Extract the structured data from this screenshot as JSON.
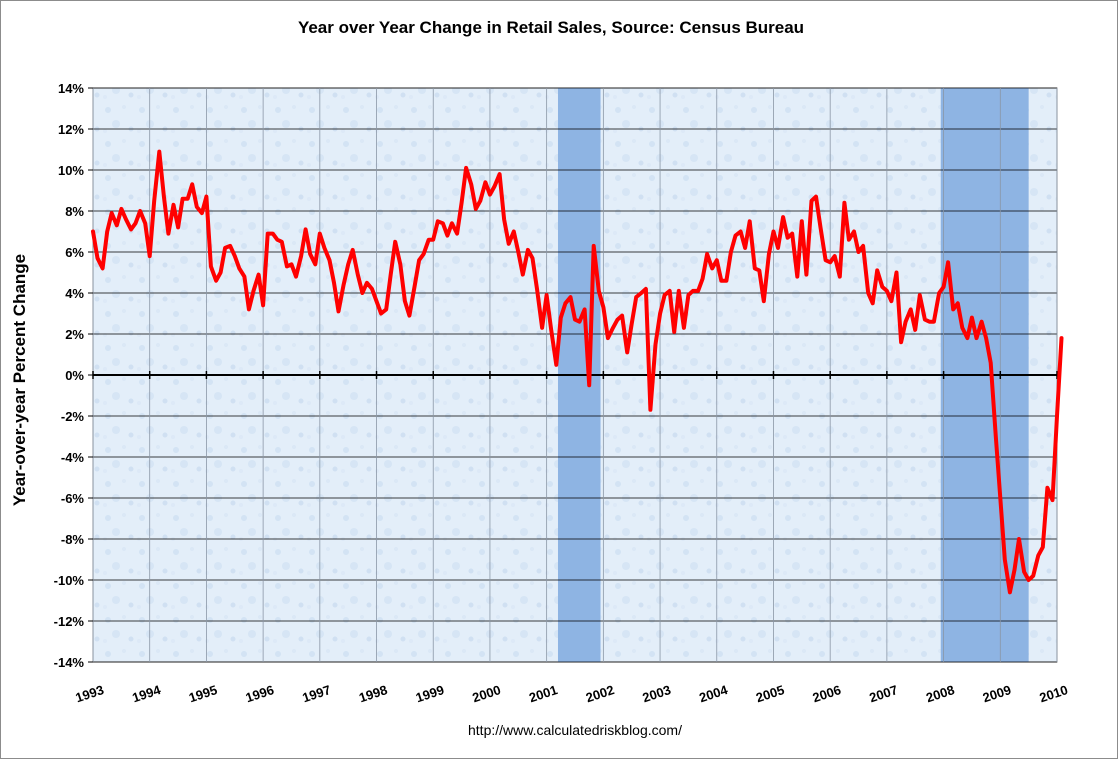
{
  "chart_data": {
    "type": "line",
    "title": "Year over Year Change in Retail Sales, Source: Census Bureau",
    "xlabel": "",
    "ylabel": "Year-over-year Percent Change",
    "source_note": "http://www.calculatedriskblog.com/",
    "xlim": [
      1993,
      2010
    ],
    "ylim": [
      -14,
      14
    ],
    "y_ticks": [
      14,
      12,
      10,
      8,
      6,
      4,
      2,
      0,
      -2,
      -4,
      -6,
      -8,
      -10,
      -12,
      -14
    ],
    "y_tick_labels": [
      "14%",
      "12%",
      "10%",
      "8%",
      "6%",
      "4%",
      "2%",
      "0%",
      "-2%",
      "-4%",
      "-6%",
      "-8%",
      "-10%",
      "-12%",
      "-14%"
    ],
    "x_tick_labels": [
      "1993",
      "1994",
      "1995",
      "1996",
      "1997",
      "1998",
      "1999",
      "2000",
      "2001",
      "2002",
      "2003",
      "2004",
      "2005",
      "2006",
      "2007",
      "2008",
      "2009",
      "2010"
    ],
    "grid": "horizontal and vertical",
    "legend": "none",
    "recession_bands": [
      {
        "start": 2001.2,
        "end": 2001.95
      },
      {
        "start": 2007.95,
        "end": 2009.5
      }
    ],
    "colors": {
      "series": "#ff0000",
      "recession": "#8eb4e3",
      "plot_bg": "#e3eef9"
    },
    "series": [
      {
        "values": [
          [
            1993.0,
            7.0
          ],
          [
            1993.08,
            5.7
          ],
          [
            1993.17,
            5.2
          ],
          [
            1993.25,
            7.0
          ],
          [
            1993.33,
            7.9
          ],
          [
            1993.42,
            7.3
          ],
          [
            1993.5,
            8.1
          ],
          [
            1993.58,
            7.6
          ],
          [
            1993.67,
            7.1
          ],
          [
            1993.75,
            7.4
          ],
          [
            1993.83,
            8.0
          ],
          [
            1993.92,
            7.4
          ],
          [
            1994.0,
            5.8
          ],
          [
            1994.08,
            8.5
          ],
          [
            1994.17,
            10.9
          ],
          [
            1994.25,
            8.7
          ],
          [
            1994.33,
            6.9
          ],
          [
            1994.42,
            8.3
          ],
          [
            1994.5,
            7.2
          ],
          [
            1994.58,
            8.6
          ],
          [
            1994.67,
            8.6
          ],
          [
            1994.75,
            9.3
          ],
          [
            1994.83,
            8.2
          ],
          [
            1994.92,
            7.9
          ],
          [
            1995.0,
            8.7
          ],
          [
            1995.08,
            5.3
          ],
          [
            1995.17,
            4.6
          ],
          [
            1995.25,
            5.0
          ],
          [
            1995.33,
            6.2
          ],
          [
            1995.42,
            6.3
          ],
          [
            1995.5,
            5.8
          ],
          [
            1995.58,
            5.2
          ],
          [
            1995.67,
            4.8
          ],
          [
            1995.75,
            3.2
          ],
          [
            1995.83,
            4.1
          ],
          [
            1995.92,
            4.9
          ],
          [
            1996.0,
            3.4
          ],
          [
            1996.08,
            6.9
          ],
          [
            1996.17,
            6.9
          ],
          [
            1996.25,
            6.6
          ],
          [
            1996.33,
            6.5
          ],
          [
            1996.42,
            5.3
          ],
          [
            1996.5,
            5.4
          ],
          [
            1996.58,
            4.8
          ],
          [
            1996.67,
            5.8
          ],
          [
            1996.75,
            7.1
          ],
          [
            1996.83,
            5.9
          ],
          [
            1996.92,
            5.4
          ],
          [
            1997.0,
            6.9
          ],
          [
            1997.08,
            6.2
          ],
          [
            1997.17,
            5.6
          ],
          [
            1997.25,
            4.5
          ],
          [
            1997.33,
            3.1
          ],
          [
            1997.42,
            4.4
          ],
          [
            1997.5,
            5.4
          ],
          [
            1997.58,
            6.1
          ],
          [
            1997.67,
            4.9
          ],
          [
            1997.75,
            4.0
          ],
          [
            1997.83,
            4.5
          ],
          [
            1997.92,
            4.2
          ],
          [
            1998.0,
            3.6
          ],
          [
            1998.08,
            3.0
          ],
          [
            1998.17,
            3.2
          ],
          [
            1998.25,
            4.9
          ],
          [
            1998.33,
            6.5
          ],
          [
            1998.42,
            5.4
          ],
          [
            1998.5,
            3.6
          ],
          [
            1998.58,
            2.9
          ],
          [
            1998.67,
            4.3
          ],
          [
            1998.75,
            5.6
          ],
          [
            1998.83,
            5.9
          ],
          [
            1998.92,
            6.6
          ],
          [
            1999.0,
            6.6
          ],
          [
            1999.08,
            7.5
          ],
          [
            1999.17,
            7.4
          ],
          [
            1999.25,
            6.8
          ],
          [
            1999.33,
            7.4
          ],
          [
            1999.42,
            6.9
          ],
          [
            1999.5,
            8.4
          ],
          [
            1999.58,
            10.1
          ],
          [
            1999.67,
            9.3
          ],
          [
            1999.75,
            8.1
          ],
          [
            1999.83,
            8.5
          ],
          [
            1999.92,
            9.4
          ],
          [
            2000.0,
            8.8
          ],
          [
            2000.08,
            9.2
          ],
          [
            2000.17,
            9.8
          ],
          [
            2000.25,
            7.6
          ],
          [
            2000.33,
            6.4
          ],
          [
            2000.42,
            7.0
          ],
          [
            2000.5,
            6.0
          ],
          [
            2000.58,
            4.9
          ],
          [
            2000.67,
            6.1
          ],
          [
            2000.75,
            5.7
          ],
          [
            2000.83,
            4.2
          ],
          [
            2000.92,
            2.3
          ],
          [
            2001.0,
            3.9
          ],
          [
            2001.08,
            2.2
          ],
          [
            2001.17,
            0.5
          ],
          [
            2001.25,
            2.8
          ],
          [
            2001.33,
            3.5
          ],
          [
            2001.42,
            3.8
          ],
          [
            2001.5,
            2.7
          ],
          [
            2001.58,
            2.6
          ],
          [
            2001.67,
            3.2
          ],
          [
            2001.75,
            -0.5
          ],
          [
            2001.83,
            6.3
          ],
          [
            2001.92,
            4.1
          ],
          [
            2002.0,
            3.3
          ],
          [
            2002.08,
            1.8
          ],
          [
            2002.17,
            2.3
          ],
          [
            2002.25,
            2.7
          ],
          [
            2002.33,
            2.9
          ],
          [
            2002.42,
            1.1
          ],
          [
            2002.5,
            2.5
          ],
          [
            2002.58,
            3.8
          ],
          [
            2002.67,
            4.0
          ],
          [
            2002.75,
            4.2
          ],
          [
            2002.83,
            -1.7
          ],
          [
            2002.92,
            1.5
          ],
          [
            2003.0,
            3.0
          ],
          [
            2003.08,
            3.9
          ],
          [
            2003.17,
            4.1
          ],
          [
            2003.25,
            2.1
          ],
          [
            2003.33,
            4.1
          ],
          [
            2003.42,
            2.3
          ],
          [
            2003.5,
            3.9
          ],
          [
            2003.58,
            4.1
          ],
          [
            2003.67,
            4.1
          ],
          [
            2003.75,
            4.7
          ],
          [
            2003.83,
            5.9
          ],
          [
            2003.92,
            5.2
          ],
          [
            2004.0,
            5.6
          ],
          [
            2004.08,
            4.6
          ],
          [
            2004.17,
            4.6
          ],
          [
            2004.25,
            6.0
          ],
          [
            2004.33,
            6.8
          ],
          [
            2004.42,
            7.0
          ],
          [
            2004.5,
            6.2
          ],
          [
            2004.58,
            7.5
          ],
          [
            2004.67,
            5.2
          ],
          [
            2004.75,
            5.1
          ],
          [
            2004.83,
            3.6
          ],
          [
            2004.92,
            5.9
          ],
          [
            2005.0,
            7.0
          ],
          [
            2005.08,
            6.2
          ],
          [
            2005.17,
            7.7
          ],
          [
            2005.25,
            6.7
          ],
          [
            2005.33,
            6.9
          ],
          [
            2005.42,
            4.8
          ],
          [
            2005.5,
            7.5
          ],
          [
            2005.58,
            4.9
          ],
          [
            2005.67,
            8.5
          ],
          [
            2005.75,
            8.7
          ],
          [
            2005.83,
            7.2
          ],
          [
            2005.92,
            5.6
          ],
          [
            2006.0,
            5.5
          ],
          [
            2006.08,
            5.8
          ],
          [
            2006.17,
            4.8
          ],
          [
            2006.25,
            8.4
          ],
          [
            2006.33,
            6.6
          ],
          [
            2006.42,
            7.0
          ],
          [
            2006.5,
            6.0
          ],
          [
            2006.58,
            6.3
          ],
          [
            2006.67,
            4.0
          ],
          [
            2006.75,
            3.5
          ],
          [
            2006.83,
            5.1
          ],
          [
            2006.92,
            4.3
          ],
          [
            2007.0,
            4.1
          ],
          [
            2007.08,
            3.6
          ],
          [
            2007.17,
            5.0
          ],
          [
            2007.25,
            1.6
          ],
          [
            2007.33,
            2.6
          ],
          [
            2007.42,
            3.2
          ],
          [
            2007.5,
            2.2
          ],
          [
            2007.58,
            3.9
          ],
          [
            2007.67,
            2.7
          ],
          [
            2007.75,
            2.6
          ],
          [
            2007.83,
            2.6
          ],
          [
            2007.92,
            4.0
          ],
          [
            2008.0,
            4.3
          ],
          [
            2008.08,
            5.5
          ],
          [
            2008.17,
            3.2
          ],
          [
            2008.25,
            3.5
          ],
          [
            2008.33,
            2.3
          ],
          [
            2008.42,
            1.8
          ],
          [
            2008.5,
            2.8
          ],
          [
            2008.58,
            1.8
          ],
          [
            2008.67,
            2.6
          ],
          [
            2008.75,
            1.8
          ],
          [
            2008.83,
            0.6
          ],
          [
            2008.92,
            -3.0
          ],
          [
            2009.0,
            -6.0
          ],
          [
            2009.08,
            -9.0
          ],
          [
            2009.17,
            -10.6
          ],
          [
            2009.25,
            -9.5
          ],
          [
            2009.33,
            -8.0
          ],
          [
            2009.42,
            -9.6
          ],
          [
            2009.5,
            -10.0
          ],
          [
            2009.58,
            -9.8
          ],
          [
            2009.67,
            -8.8
          ],
          [
            2009.75,
            -8.4
          ],
          [
            2009.83,
            -5.5
          ],
          [
            2009.92,
            -6.1
          ],
          [
            2010.0,
            -2.0
          ],
          [
            2010.08,
            1.8
          ]
        ]
      }
    ]
  }
}
